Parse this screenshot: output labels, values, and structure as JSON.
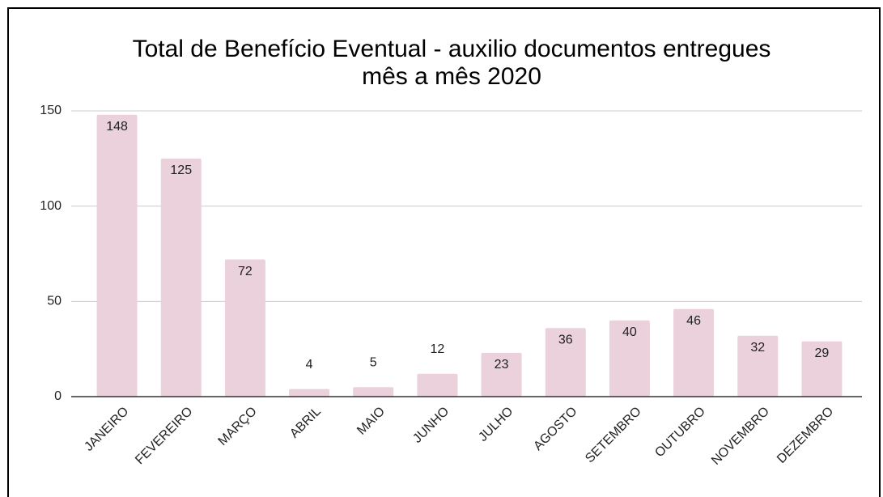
{
  "chart_data": {
    "type": "bar",
    "title": [
      "Total de Benefício Eventual - auxilio documentos entregues",
      "mês a mês 2020"
    ],
    "categories": [
      "JANEIRO",
      "FEVEREIRO",
      "MARÇO",
      "ABRIL",
      "MAIO",
      "JUNHO",
      "JULHO",
      "AGOSTO",
      "SETEMBRO",
      "OUTUBRO",
      "NOVEMBRO",
      "DEZEMBRO"
    ],
    "values": [
      148,
      125,
      72,
      4,
      5,
      12,
      23,
      36,
      40,
      46,
      32,
      29
    ],
    "color": "#ead1dc",
    "ylim": [
      0,
      150
    ],
    "yticks": [
      0,
      50,
      100,
      150
    ],
    "grid": true
  }
}
